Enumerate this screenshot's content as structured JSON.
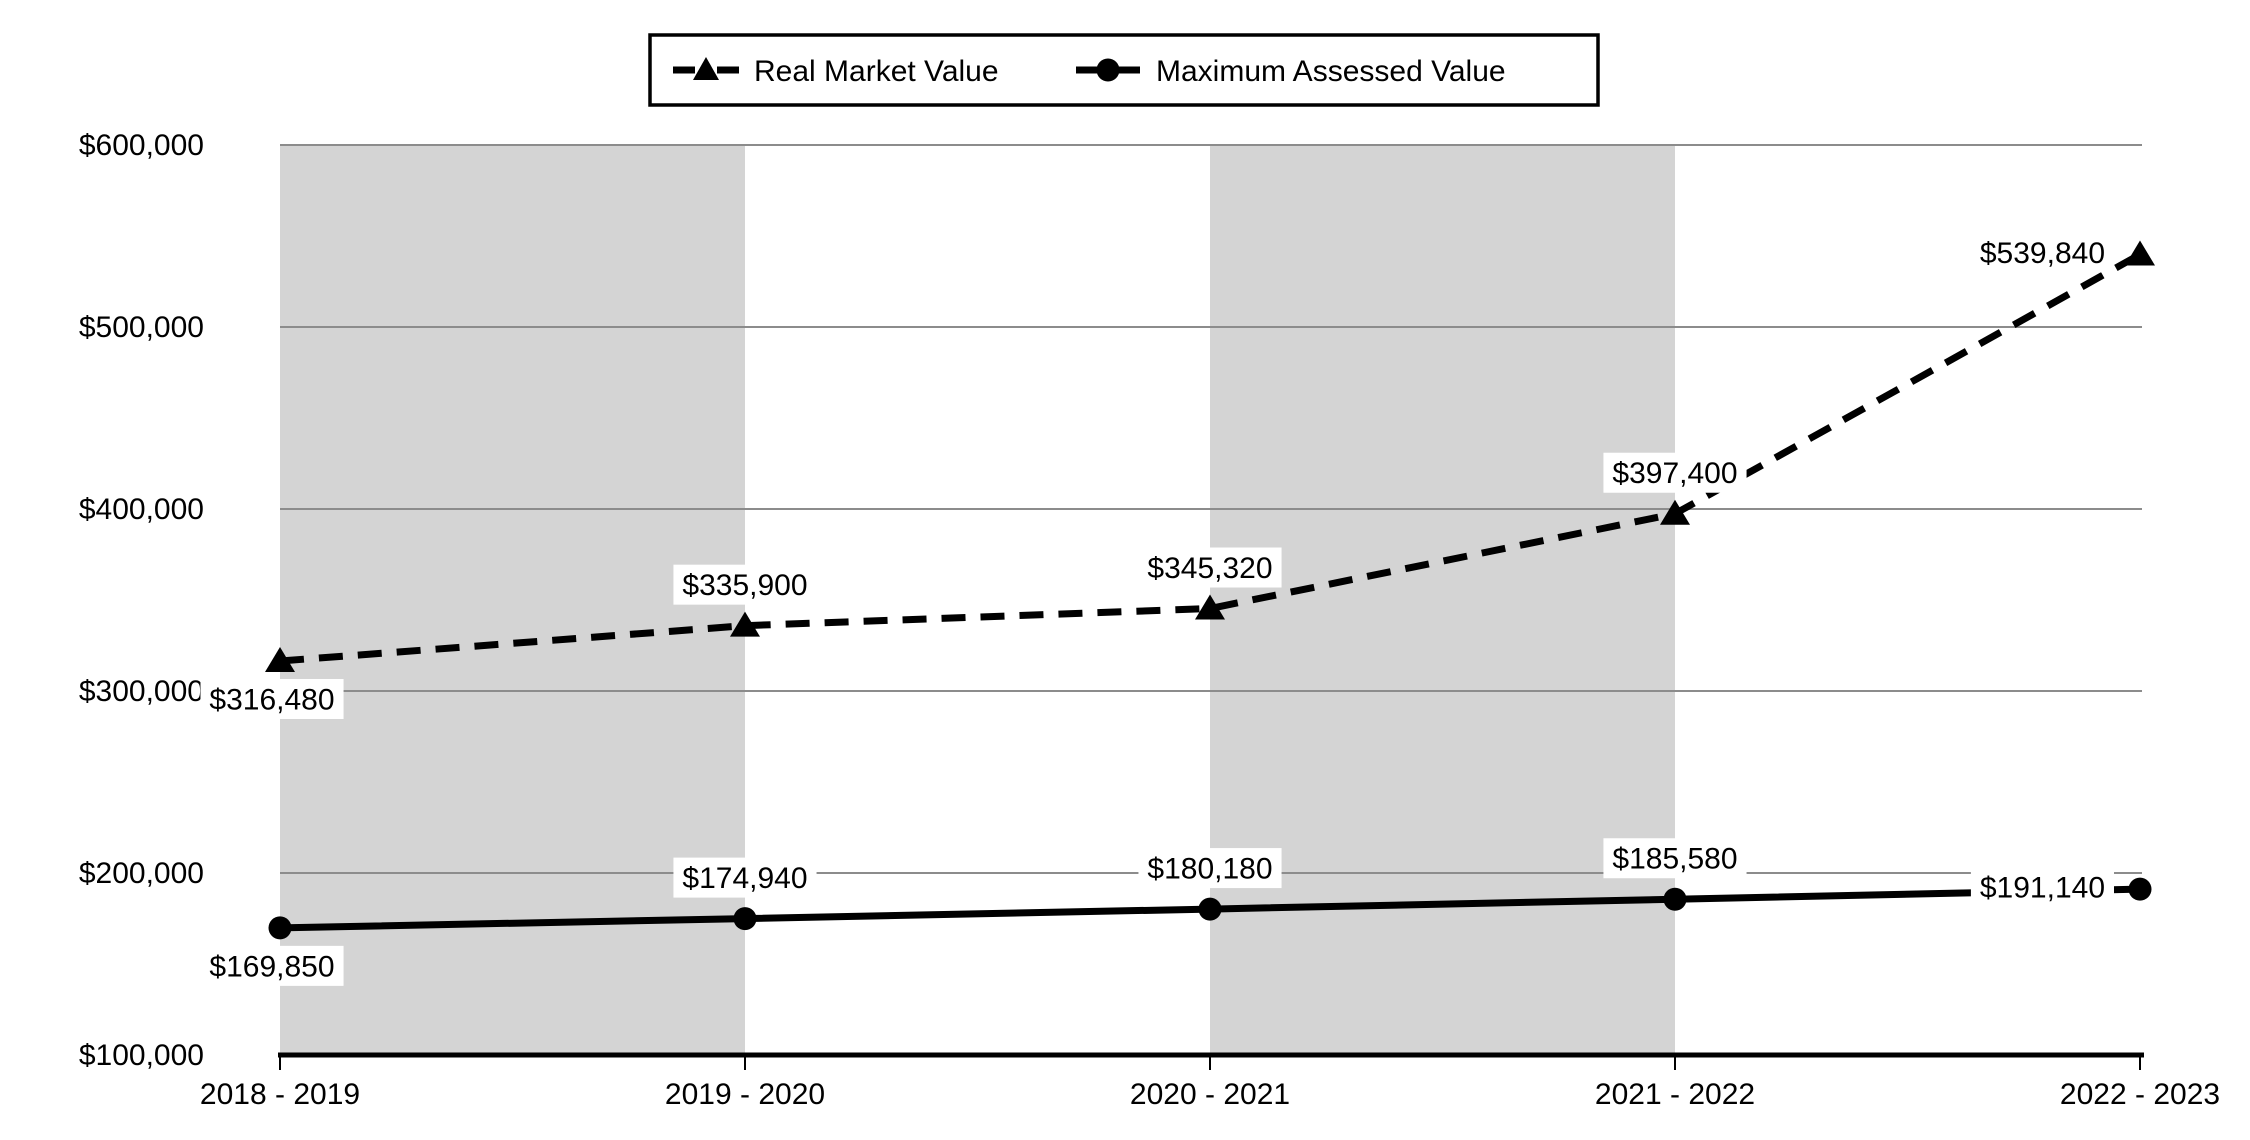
{
  "chart_data": {
    "type": "line",
    "title": "",
    "categories": [
      "2018 - 2019",
      "2019 - 2020",
      "2020 - 2021",
      "2021 - 2022",
      "2022 - 2023"
    ],
    "series": [
      {
        "name": "Real Market Value",
        "line_style": "dashed",
        "marker": "triangle",
        "color": "#000000",
        "values": [
          316480,
          335900,
          345320,
          397400,
          539840
        ],
        "point_labels": [
          "$316,480",
          "$335,900",
          "$345,320",
          "$397,400",
          "$539,840"
        ],
        "label_placement": [
          "below",
          "above",
          "above",
          "above",
          "left"
        ]
      },
      {
        "name": "Maximum Assessed Value",
        "line_style": "solid",
        "marker": "circle",
        "color": "#000000",
        "values": [
          169850,
          174940,
          180180,
          185580,
          191140
        ],
        "point_labels": [
          "$169,850",
          "$174,940",
          "$180,180",
          "$185,580",
          "$191,140"
        ],
        "label_placement": [
          "below",
          "above",
          "above",
          "above",
          "left"
        ]
      }
    ],
    "y_axis": {
      "min": 100000,
      "max": 600000,
      "step": 100000,
      "tick_labels": [
        "$100,000",
        "$200,000",
        "$300,000",
        "$400,000",
        "$500,000",
        "$600,000"
      ]
    },
    "x_axis": {
      "tick_labels": [
        "2018 - 2019",
        "2019 - 2020",
        "2020 - 2021",
        "2021 - 2022",
        "2022 - 2023"
      ]
    },
    "legend": {
      "position": "top-center",
      "border": true,
      "items": [
        {
          "label": "Real Market Value",
          "swatch": "dashed-line-triangle"
        },
        {
          "label": "Maximum Assessed Value",
          "swatch": "solid-line-circle"
        }
      ]
    },
    "grid": true,
    "shaded_band_intervals": [
      0,
      2
    ],
    "colors": {
      "line": "#000000",
      "band": "#d4d4d4",
      "gridline": "#8c8c8c",
      "axis": "#000000",
      "label_bg": "#ffffff",
      "text": "#000000"
    }
  }
}
